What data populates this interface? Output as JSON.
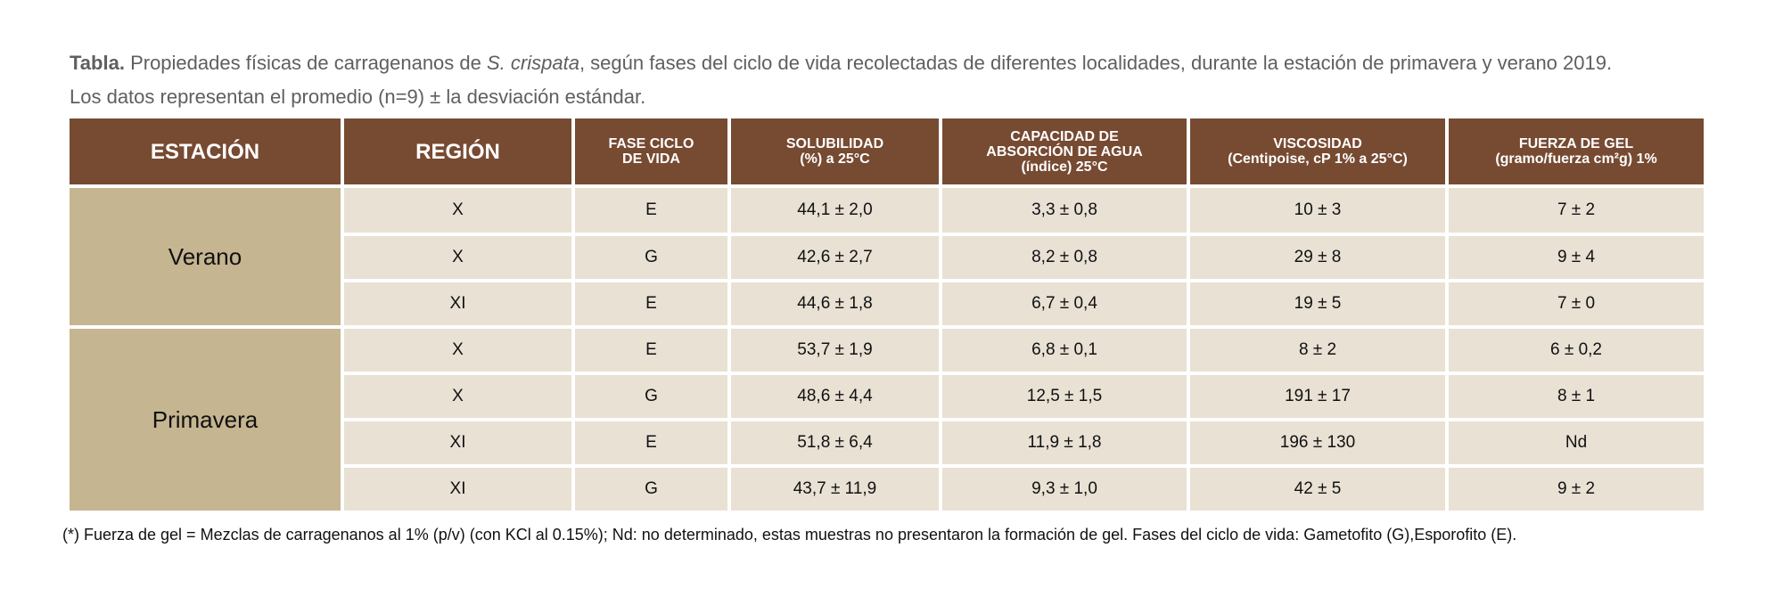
{
  "caption": {
    "bold": "Tabla.",
    "part1": " Propiedades físicas de carragenanos de ",
    "italic": "S. crispata",
    "part2": ", según fases del ciclo de vida recolectadas de diferentes localidades, durante la estación de primavera y verano 2019.",
    "line2": "Los datos representan el promedio (n=9) ± la desviación estándar."
  },
  "headers": [
    "ESTACIÓN",
    "REGIÓN",
    "FASE CICLO\nDE VIDA",
    "SOLUBILIDAD\n(%) a 25°C",
    "CAPACIDAD DE\nABSORCIÓN DE AGUA\n(índice) 25°C",
    "VISCOSIDAD\n(Centipoise, cP 1% a 25°C)",
    "FUERZA DE GEL\n(gramo/fuerza cm²g) 1%"
  ],
  "seasons": [
    "Verano",
    "Primavera"
  ],
  "rows": [
    [
      "X",
      "E",
      "44,1 ± 2,0",
      "3,3 ± 0,8",
      "10 ± 3",
      "7 ± 2"
    ],
    [
      "X",
      "G",
      "42,6 ± 2,7",
      "8,2 ± 0,8",
      "29 ± 8",
      "9 ± 4"
    ],
    [
      "XI",
      "E",
      "44,6 ± 1,8",
      "6,7 ± 0,4",
      "19 ± 5",
      "7 ± 0"
    ],
    [
      "X",
      "E",
      "53,7 ± 1,9",
      "6,8 ± 0,1",
      "8 ± 2",
      "6 ± 0,2"
    ],
    [
      "X",
      "G",
      "48,6 ± 4,4",
      "12,5 ± 1,5",
      "191 ± 17",
      "8 ± 1"
    ],
    [
      "XI",
      "E",
      "51,8 ± 6,4",
      "11,9 ± 1,8",
      "196 ± 130",
      "Nd"
    ],
    [
      "XI",
      "G",
      "43,7 ± 11,9",
      "9,3 ± 1,0",
      "42 ± 5",
      "9 ± 2"
    ]
  ],
  "footnote": "(*) Fuerza de gel = Mezclas de carragenanos al 1% (p/v) (con KCl al 0.15%); Nd: no determinado, estas muestras no presentaron la formación de gel. Fases del ciclo de vida: Gametofito (G),Esporofito (E).",
  "colors": {
    "header": "#774a32",
    "season": "#c6b591",
    "cell": "#e8e1d4"
  }
}
